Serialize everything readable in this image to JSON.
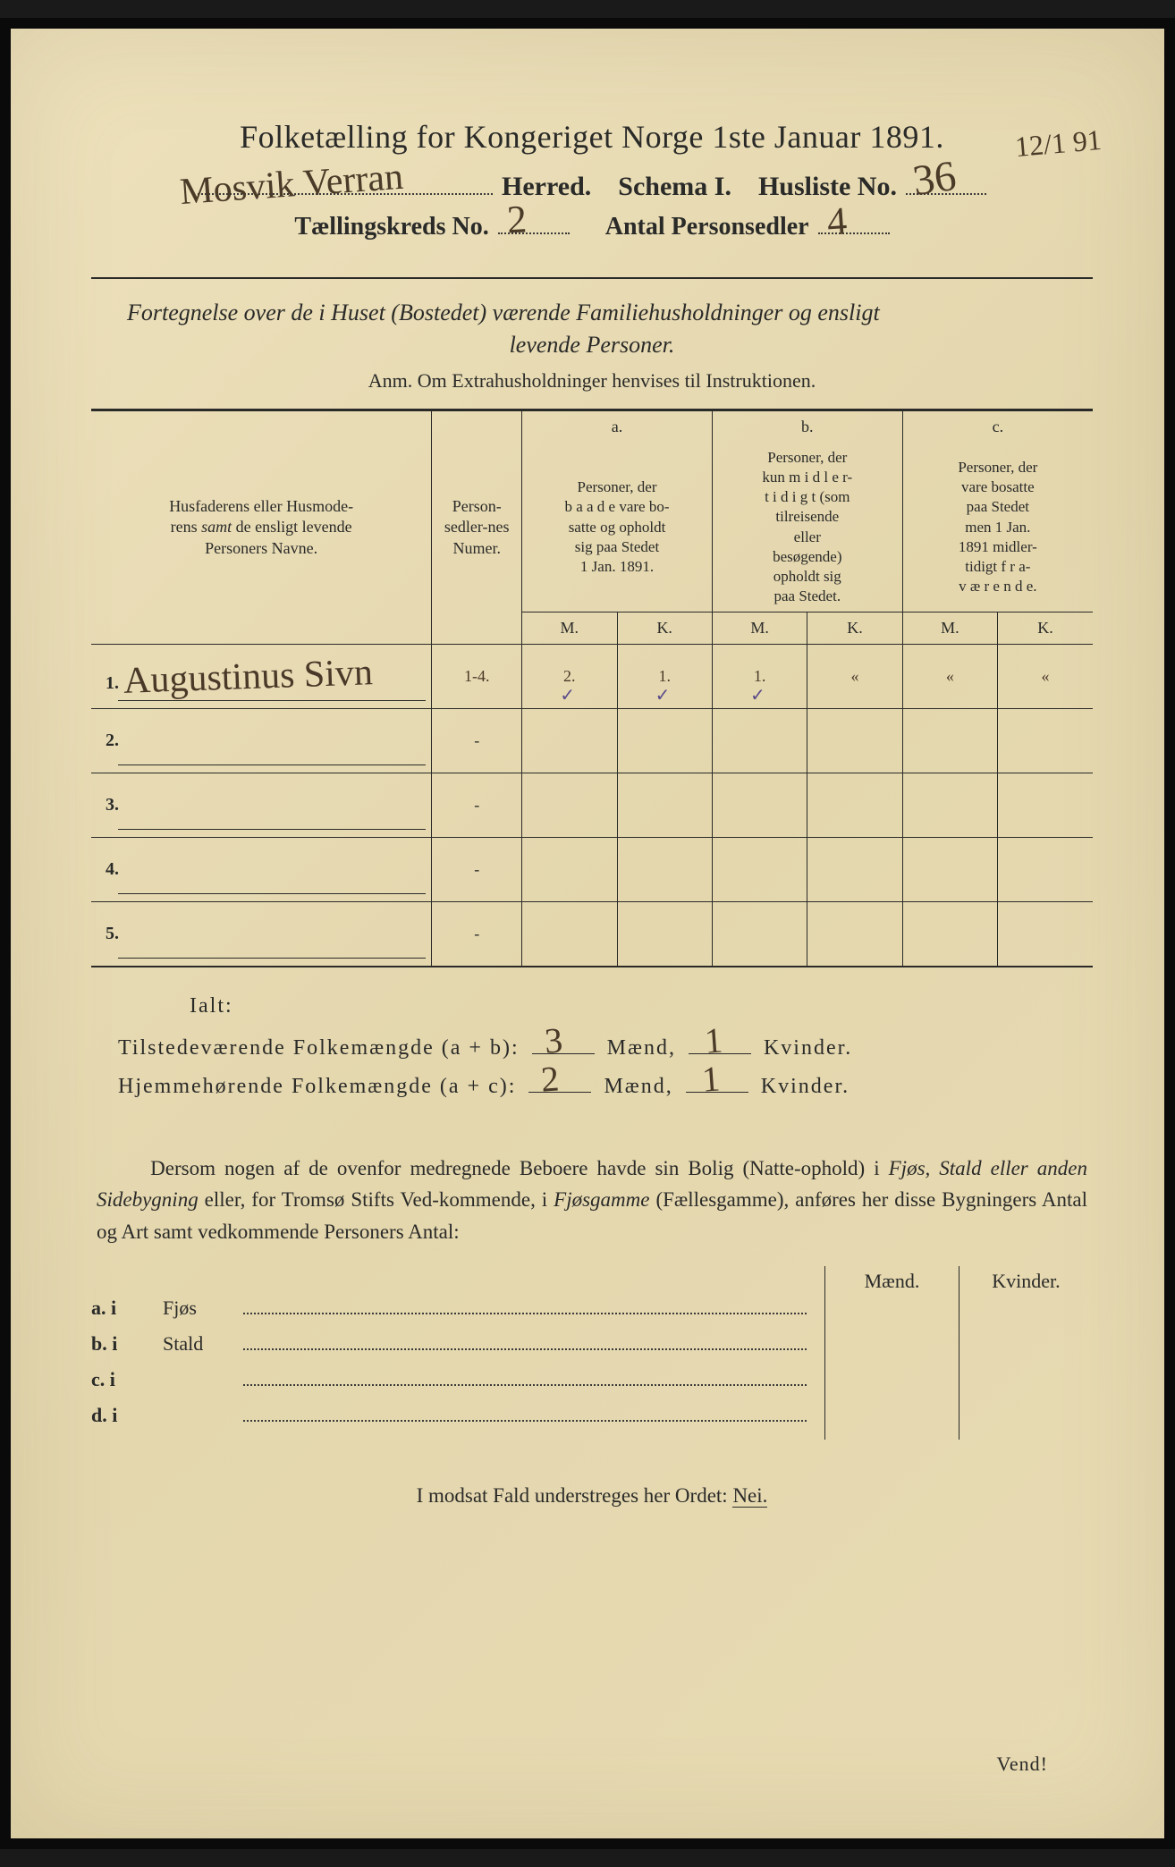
{
  "title": "Folketælling for Kongeriget Norge 1ste Januar 1891.",
  "header": {
    "herred_label": "Herred.",
    "herred_value": "Mosvik Verran",
    "schema_label": "Schema I.",
    "husliste_label": "Husliste No.",
    "husliste_value": "36",
    "margin_date": "12/1 91",
    "kreds_label": "Tællingskreds No.",
    "kreds_value": "2",
    "antal_label": "Antal Personsedler",
    "antal_value": "4"
  },
  "subtitle_line1": "Fortegnelse over de i Huset (Bostedet) værende Familiehusholdninger og ensligt",
  "subtitle_line2": "levende Personer.",
  "anm": "Anm.  Om Extrahusholdninger henvises til Instruktionen.",
  "table": {
    "col_name": "Husfaderens eller Husmoderens samt de ensligt levende Personers Navne.",
    "col_num": "Person-sedler-nes Numer.",
    "col_a_head": "a.",
    "col_a": "Personer, der baade vare bosatte og opholdt sig paa Stedet 1 Jan. 1891.",
    "col_b_head": "b.",
    "col_b": "Personer, der kun midlertidigt (som tilreisende eller besøgende) opholdt sig paa Stedet.",
    "col_c_head": "c.",
    "col_c": "Personer, der vare bosatte paa Stedet men 1 Jan. 1891 midlertidigt fraværende.",
    "m": "M.",
    "k": "K.",
    "rows": [
      {
        "n": "1.",
        "name": "Augustinus Sivn",
        "num": "1-4.",
        "am": "2.",
        "ak": "1.",
        "bm": "1.",
        "bk": "«",
        "cm": "«",
        "ck": "«"
      },
      {
        "n": "2.",
        "name": "",
        "num": "",
        "am": "",
        "ak": "",
        "bm": "",
        "bk": "",
        "cm": "",
        "ck": ""
      },
      {
        "n": "3.",
        "name": "",
        "num": "",
        "am": "",
        "ak": "",
        "bm": "",
        "bk": "",
        "cm": "",
        "ck": ""
      },
      {
        "n": "4.",
        "name": "",
        "num": "",
        "am": "",
        "ak": "",
        "bm": "",
        "bk": "",
        "cm": "",
        "ck": ""
      },
      {
        "n": "5.",
        "name": "",
        "num": "",
        "am": "",
        "ak": "",
        "bm": "",
        "bk": "",
        "cm": "",
        "ck": ""
      }
    ]
  },
  "ialt": {
    "title": "Ialt:",
    "row1_label": "Tilstedeværende Folkemængde (a + b):",
    "row1_m": "3",
    "row1_k": "1",
    "row2_label": "Hjemmehørende Folkemængde (a + c):",
    "row2_m": "2",
    "row2_k": "1",
    "maend": "Mænd,",
    "kvinder": "Kvinder."
  },
  "body": "Dersom nogen af de ovenfor medregnede Beboere havde sin Bolig (Natteophold) i Fjøs, Stald eller anden Sidebygning eller, for Tromsø Stifts Vedkommende, i Fjøsgamme (Fællesgamme), anføres her disse Bygningers Antal og Art samt vedkommende Personers Antal:",
  "lower": {
    "maend": "Mænd.",
    "kvinder": "Kvinder.",
    "rows": [
      {
        "label": "a.  i",
        "text": "Fjøs"
      },
      {
        "label": "b.  i",
        "text": "Stald"
      },
      {
        "label": "c.  i",
        "text": ""
      },
      {
        "label": "d.  i",
        "text": ""
      }
    ]
  },
  "bottom": "I modsat Fald understreges her Ordet: ",
  "nei": "Nei.",
  "vend": "Vend!"
}
